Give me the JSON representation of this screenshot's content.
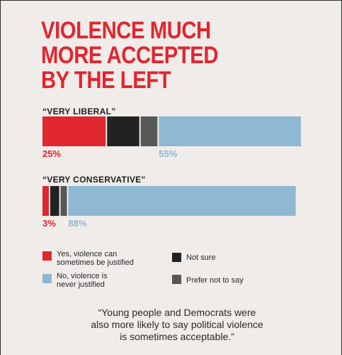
{
  "title_lines": [
    "VIOLENCE MUCH",
    "MORE ACCEPTED",
    "BY THE LEFT"
  ],
  "colors": {
    "yes": "#e0262f",
    "not_sure": "#222222",
    "prefer_not": "#575757",
    "no": "#8fb8d2",
    "pct_yes": "#e0262f",
    "pct_no": "#8fb8d2"
  },
  "chart_data": {
    "type": "bar",
    "orientation": "horizontal",
    "stacked": true,
    "categories": [
      "“VERY LIBERAL”",
      "“VERY CONSERVATIVE”"
    ],
    "series": [
      {
        "name": "Yes, violence can sometimes be justified",
        "values": [
          25,
          3
        ]
      },
      {
        "name": "Not sure",
        "values": [
          13,
          4
        ]
      },
      {
        "name": "Prefer not to say",
        "values": [
          7,
          3
        ]
      },
      {
        "name": "No, violence is never justified",
        "values": [
          55,
          88
        ]
      }
    ],
    "labels": [
      {
        "yes": "25%",
        "no": "55%"
      },
      {
        "yes": "3%",
        "no": "88%"
      }
    ],
    "xlim": [
      0,
      100
    ],
    "legend_position": "bottom"
  },
  "legend": [
    {
      "key": "yes",
      "lines": [
        "Yes, violence can",
        "sometimes be justified"
      ]
    },
    {
      "key": "not_sure",
      "lines": [
        "Not sure"
      ]
    },
    {
      "key": "no",
      "lines": [
        "No, violence is",
        "never justified"
      ]
    },
    {
      "key": "prefer_not",
      "lines": [
        "Prefer not to say"
      ]
    }
  ],
  "quote_lines": [
    "“Young people and Democrats were",
    "also more likely to say political violence",
    "is sometimes acceptable.”"
  ]
}
